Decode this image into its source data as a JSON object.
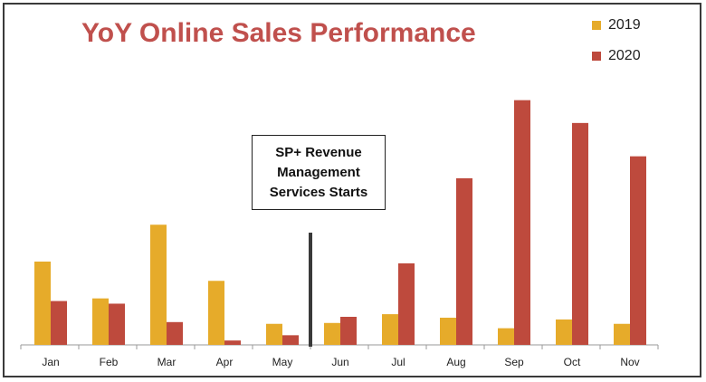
{
  "chart_data": {
    "type": "bar",
    "title": "YoY Online Sales Performance",
    "categories": [
      "Jan",
      "Feb",
      "Mar",
      "Apr",
      "May",
      "Jun",
      "Jul",
      "Aug",
      "Sep",
      "Oct",
      "Nov"
    ],
    "series": [
      {
        "name": "2019",
        "color": "#e6ab2a",
        "values": [
          95,
          53,
          137,
          73,
          24,
          25,
          35,
          31,
          19,
          29,
          24
        ]
      },
      {
        "name": "2020",
        "color": "#be4a3d",
        "values": [
          50,
          47,
          26,
          5,
          11,
          32,
          93,
          190,
          279,
          253,
          215
        ]
      }
    ],
    "ylim": [
      0,
      290
    ],
    "grid": false,
    "legend_position": "top-right",
    "annotation": {
      "lines": [
        "SP+ Revenue",
        "Management",
        "Services Starts"
      ],
      "marker_between": [
        "May",
        "Jun"
      ]
    }
  }
}
